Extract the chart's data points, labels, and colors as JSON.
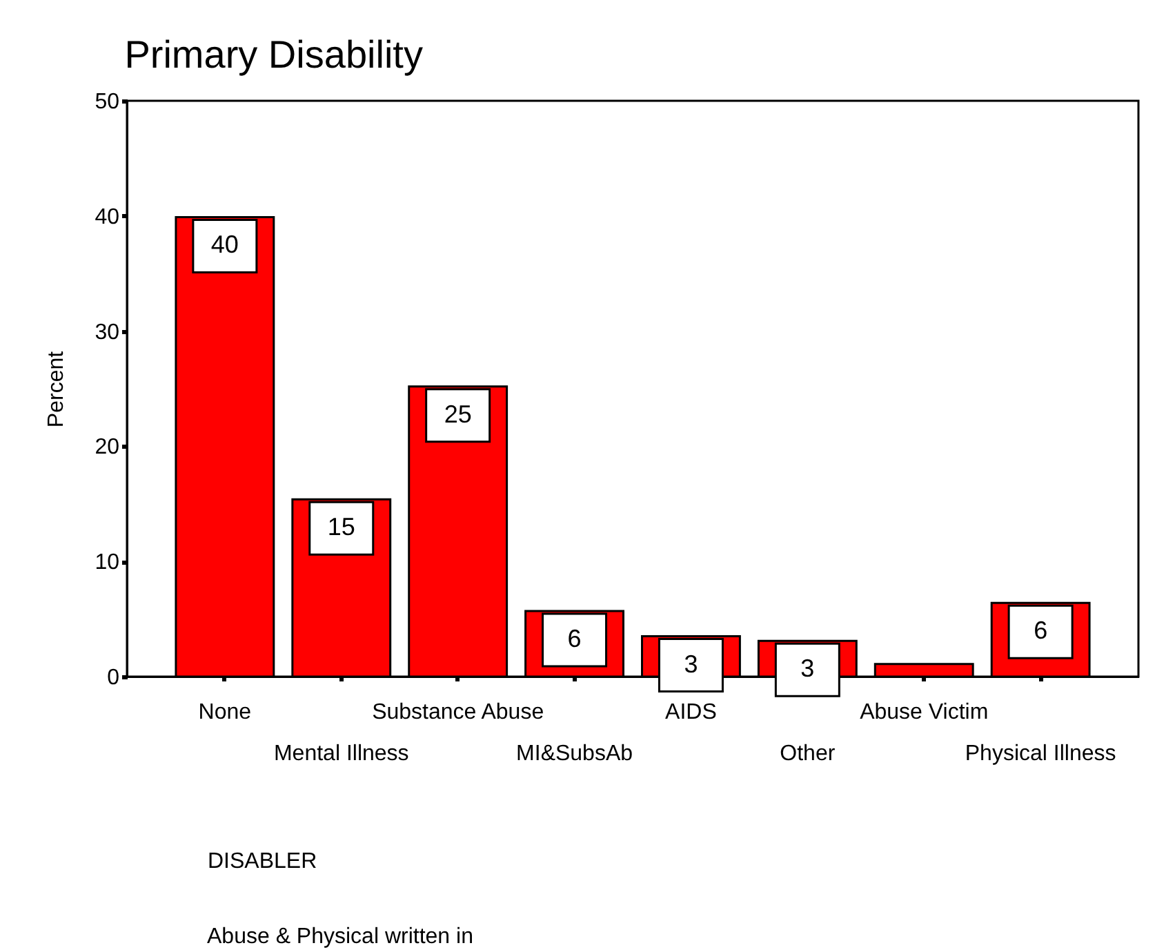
{
  "chart_data": {
    "type": "bar",
    "title": "Primary Disability",
    "xlabel": "DISABLER",
    "ylabel": "Percent",
    "categories": [
      "None",
      "Mental Illness",
      "Substance Abuse",
      "MI&SubsAb",
      "AIDS",
      "Other",
      "Abuse Victim",
      "Physical Illness"
    ],
    "values": [
      39.9,
      15.4,
      25.2,
      5.7,
      3.5,
      3.1,
      1.1,
      6.4
    ],
    "value_labels": [
      "40",
      "15",
      "25",
      "6",
      "3",
      "3",
      null,
      "6"
    ],
    "color": "#ff0000",
    "ylim": [
      0,
      50
    ],
    "yticks": [
      0,
      10,
      20,
      30,
      40,
      50
    ],
    "grid": false,
    "annotations": [
      "Abuse & Physical written in"
    ]
  }
}
